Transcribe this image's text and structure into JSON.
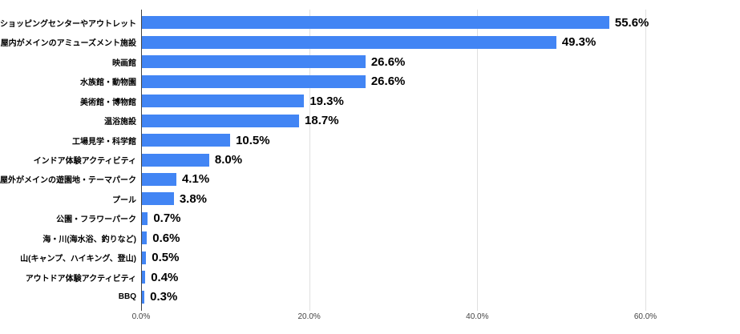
{
  "chart_data": {
    "type": "bar",
    "orientation": "horizontal",
    "title": "",
    "xlabel": "",
    "ylabel": "",
    "categories": [
      "ショッピングセンターやアウトレット",
      "屋内がメインのアミューズメント施設",
      "映画館",
      "水族館・動物園",
      "美術館・博物館",
      "温浴施設",
      "工場見学・科学館",
      "インドア体験アクティビティ",
      "屋外がメインの遊園地・テーマパーク",
      "プール",
      "公園・フラワーパーク",
      "海・川(海水浴、釣りなど)",
      "山(キャンプ、ハイキング、登山)",
      "アウトドア体験アクティビティ",
      "BBQ"
    ],
    "values": [
      55.6,
      49.3,
      26.6,
      26.6,
      19.3,
      18.7,
      10.5,
      8.0,
      4.1,
      3.8,
      0.7,
      0.6,
      0.5,
      0.4,
      0.3
    ],
    "value_labels": [
      "55.6%",
      "49.3%",
      "26.6%",
      "26.6%",
      "19.3%",
      "18.7%",
      "10.5%",
      "8.0%",
      "4.1%",
      "3.8%",
      "0.7%",
      "0.6%",
      "0.5%",
      "0.4%",
      "0.3%"
    ],
    "x_ticks": [
      {
        "value": 0,
        "label": "0.0%"
      },
      {
        "value": 20,
        "label": "20.0%"
      },
      {
        "value": 40,
        "label": "40.0%"
      },
      {
        "value": 60,
        "label": "60.0%"
      }
    ],
    "xlim": [
      0,
      71.3
    ],
    "grid": true,
    "legend": "none",
    "colors": {
      "bar": "#4285f4",
      "gridline": "#e0e0e0",
      "axis_line": "#424242",
      "value_label": "#000000",
      "category_label": "#000000",
      "tick_label": "#444444",
      "background": "#ffffff"
    }
  }
}
